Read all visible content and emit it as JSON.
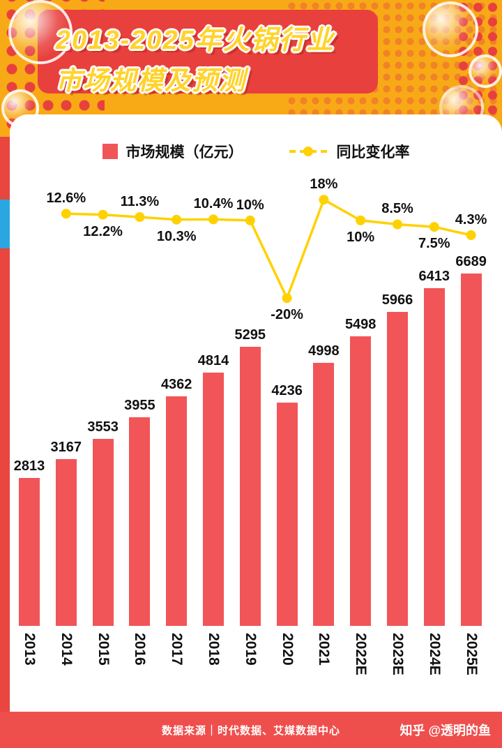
{
  "header": {
    "title_line1": "2013-2025年火锅行业",
    "title_line2": "市场规模及预测"
  },
  "legend": {
    "bars_label": "市场规模（亿元）",
    "line_label": "同比变化率"
  },
  "footer": {
    "source": "数据来源｜时代数据、艾媒数据中心",
    "credit": "知乎 @透明的鱼"
  },
  "colors": {
    "bar": "#f15558",
    "line": "#ffd100",
    "header_bg": "#f8aa16",
    "title_box": "#e8403d",
    "title_text": "#ffd32a",
    "footer_bg": "#ef4f4c",
    "accent_blue": "#2aa7e0",
    "page_edge": "#e8463f",
    "label": "#111111"
  },
  "chart_data": {
    "type": "bar+line",
    "title": "2013-2025年火锅行业市场规模及预测",
    "categories": [
      "2013",
      "2014",
      "2015",
      "2016",
      "2017",
      "2018",
      "2019",
      "2020",
      "2021",
      "2022E",
      "2023E",
      "2024E",
      "2025E"
    ],
    "series": [
      {
        "name": "市场规模（亿元）",
        "type": "bar",
        "values": [
          2813,
          3167,
          3553,
          3955,
          4362,
          4814,
          5295,
          4236,
          4998,
          5498,
          5966,
          6413,
          6689
        ]
      },
      {
        "name": "同比变化率",
        "type": "line",
        "categories": [
          "2014",
          "2015",
          "2016",
          "2017",
          "2018",
          "2019",
          "2020",
          "2021",
          "2022E",
          "2023E",
          "2024E",
          "2025E"
        ],
        "values_pct": [
          12.6,
          12.2,
          11.3,
          10.3,
          10.4,
          10,
          -20,
          18,
          10,
          8.5,
          7.5,
          4.3
        ],
        "labels": [
          "12.6%",
          "12.2%",
          "11.3%",
          "10.3%",
          "10.4%",
          "10%",
          "-20%",
          "18%",
          "10%",
          "8.5%",
          "7.5%",
          "4.3%"
        ],
        "label_position": [
          "above",
          "below",
          "above",
          "below",
          "above",
          "above",
          "below",
          "above",
          "below",
          "above",
          "below",
          "above"
        ]
      }
    ],
    "ylim_bar": [
      0,
      7000
    ],
    "legend_position": "top",
    "grid": false
  }
}
